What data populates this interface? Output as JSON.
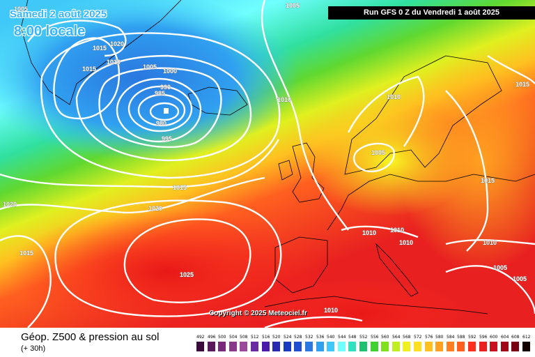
{
  "header": {
    "valid_date": "Samedi 2 août 2025",
    "valid_time": "8:00 locale",
    "run_info": "Run GFS 0 Z du Vendredi 1 août 2025"
  },
  "copyright": "Copyright © 2025 Meteociel.fr",
  "footer": {
    "title": "Géop. Z500 & pression au sol",
    "offset": "(+ 30h)"
  },
  "legend": {
    "labels": [
      "492",
      "496",
      "500",
      "504",
      "508",
      "512",
      "516",
      "520",
      "524",
      "528",
      "532",
      "536",
      "540",
      "544",
      "548",
      "552",
      "556",
      "560",
      "564",
      "568",
      "572",
      "576",
      "580",
      "584",
      "588",
      "592",
      "596",
      "600",
      "604",
      "608",
      "612"
    ],
    "colors": [
      "#3a0a3a",
      "#5a1a5a",
      "#7a2a7a",
      "#8a3a8a",
      "#9a4a9a",
      "#6a2aa0",
      "#4a1aa8",
      "#2a2ab0",
      "#1a3ac0",
      "#2050d0",
      "#2a78e0",
      "#30a0f0",
      "#40c8f8",
      "#70ffff",
      "#30e0c0",
      "#20c070",
      "#40d030",
      "#80e020",
      "#c0ee20",
      "#f0f020",
      "#ffe020",
      "#ffc020",
      "#ffa020",
      "#ff8020",
      "#ff6020",
      "#ff3020",
      "#e82020",
      "#c81020",
      "#a00818",
      "#780010",
      "#100000"
    ]
  },
  "isobars": [
    {
      "label": "1005"
    },
    {
      "label": "1005"
    },
    {
      "label": "1020"
    },
    {
      "label": "1015"
    },
    {
      "label": "1010"
    },
    {
      "label": "1015"
    },
    {
      "label": "1005"
    },
    {
      "label": "1000"
    },
    {
      "label": "990"
    },
    {
      "label": "985"
    },
    {
      "label": "980"
    },
    {
      "label": "995"
    },
    {
      "label": "1010"
    },
    {
      "label": "1010"
    },
    {
      "label": "1005"
    },
    {
      "label": "1015"
    },
    {
      "label": "1015"
    },
    {
      "label": "1020"
    },
    {
      "label": "1020"
    },
    {
      "label": "1015"
    },
    {
      "label": "1025"
    },
    {
      "label": "1010"
    },
    {
      "label": "1010"
    },
    {
      "label": "1010"
    },
    {
      "label": "1015"
    },
    {
      "label": "1010"
    },
    {
      "label": "1005"
    },
    {
      "label": "1005"
    },
    {
      "label": "1010"
    }
  ],
  "colors": {
    "banner_bg": "#000000",
    "valid_text": "#35b5ff",
    "isobar": "#ffffff"
  }
}
